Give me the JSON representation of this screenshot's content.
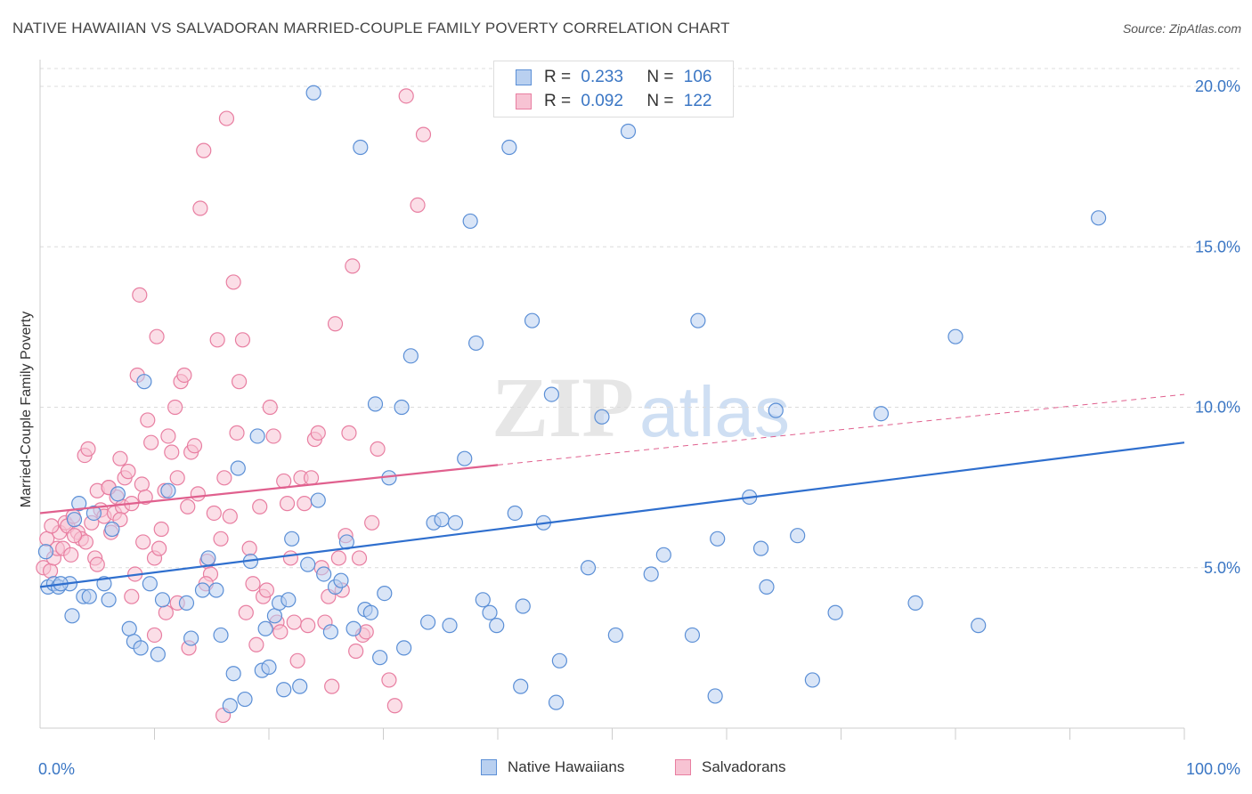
{
  "header": {
    "title": "NATIVE HAWAIIAN VS SALVADORAN MARRIED-COUPLE FAMILY POVERTY CORRELATION CHART",
    "source": "Source: ZipAtlas.com"
  },
  "watermark": {
    "zip": "ZIP",
    "atlas": "atlas"
  },
  "legend": {
    "rows": [
      {
        "r_label": "R =",
        "r_value": "0.233",
        "n_label": "N =",
        "n_value": "106"
      },
      {
        "r_label": "R =",
        "r_value": "0.092",
        "n_label": "N =",
        "n_value": "122"
      }
    ]
  },
  "bottom_legend": {
    "series1": "Native Hawaiians",
    "series2": "Salvadorans"
  },
  "colors": {
    "blue": "#5b8fd6",
    "blue_fill": "#b9d0f0",
    "blue_line": "#2f6fce",
    "pink": "#e87ea1",
    "pink_fill": "#f7c3d3",
    "pink_line": "#e0608e",
    "tick_text": "#3a76c4"
  },
  "chart_data": {
    "type": "scatter",
    "title": "NATIVE HAWAIIAN VS SALVADORAN MARRIED-COUPLE FAMILY POVERTY CORRELATION CHART",
    "xlabel": "",
    "ylabel": "Married-Couple Family Poverty",
    "xlim": [
      0,
      100
    ],
    "ylim": [
      0,
      20.5
    ],
    "x_tick_labels": [
      "0.0%",
      "100.0%"
    ],
    "y_ticks": [
      5,
      10,
      15,
      20
    ],
    "y_tick_labels": [
      "5.0%",
      "10.0%",
      "15.0%",
      "20.0%"
    ],
    "grid": "horizontal dashed",
    "series": [
      {
        "name": "Native Hawaiians",
        "color": "#5b8fd6",
        "trend": {
          "x": [
            0,
            100
          ],
          "y": [
            4.4,
            8.9
          ]
        },
        "points": [
          [
            0.5,
            5.5
          ],
          [
            0.7,
            4.4
          ],
          [
            1.2,
            4.5
          ],
          [
            1.6,
            4.4
          ],
          [
            2.6,
            4.5
          ],
          [
            2.8,
            3.5
          ],
          [
            3.4,
            7.0
          ],
          [
            3.8,
            4.1
          ],
          [
            4.3,
            4.1
          ],
          [
            4.7,
            6.7
          ],
          [
            5.6,
            4.5
          ],
          [
            6.0,
            4.0
          ],
          [
            6.3,
            6.2
          ],
          [
            6.8,
            7.3
          ],
          [
            7.8,
            3.1
          ],
          [
            8.2,
            2.7
          ],
          [
            8.8,
            2.5
          ],
          [
            9.1,
            10.8
          ],
          [
            9.6,
            4.5
          ],
          [
            10.3,
            2.3
          ],
          [
            10.7,
            4.0
          ],
          [
            11.2,
            7.4
          ],
          [
            12.8,
            3.9
          ],
          [
            13.2,
            2.8
          ],
          [
            14.2,
            4.3
          ],
          [
            14.7,
            5.3
          ],
          [
            15.4,
            4.3
          ],
          [
            16.6,
            0.7
          ],
          [
            16.9,
            1.7
          ],
          [
            17.3,
            8.1
          ],
          [
            17.9,
            0.9
          ],
          [
            18.4,
            5.2
          ],
          [
            19.0,
            9.1
          ],
          [
            19.4,
            1.8
          ],
          [
            19.7,
            3.1
          ],
          [
            20.0,
            1.9
          ],
          [
            20.5,
            3.5
          ],
          [
            20.9,
            3.9
          ],
          [
            21.3,
            1.2
          ],
          [
            21.7,
            4.0
          ],
          [
            22.0,
            5.9
          ],
          [
            22.7,
            1.3
          ],
          [
            23.4,
            5.1
          ],
          [
            23.9,
            19.8
          ],
          [
            24.3,
            7.1
          ],
          [
            24.8,
            4.8
          ],
          [
            25.4,
            3.0
          ],
          [
            25.8,
            4.4
          ],
          [
            26.3,
            4.6
          ],
          [
            26.8,
            5.8
          ],
          [
            27.4,
            3.1
          ],
          [
            28.0,
            18.1
          ],
          [
            28.4,
            3.7
          ],
          [
            28.9,
            3.6
          ],
          [
            29.3,
            10.1
          ],
          [
            29.7,
            2.2
          ],
          [
            30.1,
            4.2
          ],
          [
            30.5,
            7.8
          ],
          [
            31.6,
            10.0
          ],
          [
            31.8,
            2.5
          ],
          [
            32.4,
            11.6
          ],
          [
            33.9,
            3.3
          ],
          [
            34.4,
            6.4
          ],
          [
            35.1,
            6.5
          ],
          [
            35.8,
            3.2
          ],
          [
            36.3,
            6.4
          ],
          [
            37.1,
            8.4
          ],
          [
            37.6,
            15.8
          ],
          [
            38.1,
            12.0
          ],
          [
            38.7,
            4.0
          ],
          [
            39.3,
            3.6
          ],
          [
            39.9,
            3.2
          ],
          [
            41.0,
            18.1
          ],
          [
            41.5,
            6.7
          ],
          [
            42.0,
            1.3
          ],
          [
            42.2,
            3.8
          ],
          [
            43.0,
            12.7
          ],
          [
            44.0,
            6.4
          ],
          [
            44.7,
            10.4
          ],
          [
            45.1,
            0.8
          ],
          [
            45.4,
            2.1
          ],
          [
            47.9,
            5.0
          ],
          [
            49.1,
            9.7
          ],
          [
            50.3,
            2.9
          ],
          [
            51.4,
            18.6
          ],
          [
            53.4,
            4.8
          ],
          [
            54.5,
            5.4
          ],
          [
            57.0,
            2.9
          ],
          [
            57.5,
            12.7
          ],
          [
            59.0,
            1.0
          ],
          [
            59.2,
            5.9
          ],
          [
            62.0,
            7.2
          ],
          [
            63.0,
            5.6
          ],
          [
            63.5,
            4.4
          ],
          [
            64.3,
            9.9
          ],
          [
            66.2,
            6.0
          ],
          [
            67.5,
            1.5
          ],
          [
            69.5,
            3.6
          ],
          [
            73.5,
            9.8
          ],
          [
            76.5,
            3.9
          ],
          [
            80.0,
            12.2
          ],
          [
            82.0,
            3.2
          ],
          [
            92.5,
            15.9
          ],
          [
            1.8,
            4.5
          ],
          [
            3.0,
            6.5
          ],
          [
            15.8,
            2.9
          ]
        ]
      },
      {
        "name": "Salvadorans",
        "color": "#e87ea1",
        "trend": {
          "x": [
            0,
            40
          ],
          "y": [
            6.7,
            8.2
          ],
          "dashed_to": {
            "x": 100,
            "y": 10.4
          }
        },
        "points": [
          [
            0.3,
            5.0
          ],
          [
            0.6,
            5.9
          ],
          [
            0.9,
            4.9
          ],
          [
            1.2,
            5.3
          ],
          [
            1.5,
            5.6
          ],
          [
            1.7,
            6.1
          ],
          [
            2.0,
            5.6
          ],
          [
            2.2,
            6.4
          ],
          [
            2.4,
            6.3
          ],
          [
            2.7,
            5.4
          ],
          [
            2.9,
            6.6
          ],
          [
            3.3,
            6.1
          ],
          [
            3.6,
            5.9
          ],
          [
            3.9,
            8.5
          ],
          [
            4.2,
            8.7
          ],
          [
            4.5,
            6.4
          ],
          [
            4.8,
            5.3
          ],
          [
            5.0,
            7.4
          ],
          [
            5.3,
            6.8
          ],
          [
            5.6,
            6.6
          ],
          [
            6.0,
            7.5
          ],
          [
            6.2,
            6.1
          ],
          [
            6.5,
            6.7
          ],
          [
            6.7,
            7.2
          ],
          [
            7.0,
            8.4
          ],
          [
            7.2,
            6.9
          ],
          [
            7.4,
            7.8
          ],
          [
            7.7,
            8.0
          ],
          [
            8.0,
            7.0
          ],
          [
            8.3,
            4.8
          ],
          [
            8.5,
            11.0
          ],
          [
            8.7,
            13.5
          ],
          [
            8.9,
            7.6
          ],
          [
            9.2,
            7.2
          ],
          [
            9.4,
            9.6
          ],
          [
            9.7,
            8.9
          ],
          [
            10.0,
            5.3
          ],
          [
            10.2,
            12.2
          ],
          [
            10.4,
            5.6
          ],
          [
            10.6,
            6.2
          ],
          [
            10.9,
            7.4
          ],
          [
            11.2,
            9.1
          ],
          [
            11.5,
            8.6
          ],
          [
            11.8,
            10.0
          ],
          [
            12.0,
            7.8
          ],
          [
            12.3,
            10.8
          ],
          [
            12.6,
            11.0
          ],
          [
            12.9,
            6.9
          ],
          [
            13.2,
            8.6
          ],
          [
            13.5,
            8.8
          ],
          [
            13.8,
            7.3
          ],
          [
            14.0,
            16.2
          ],
          [
            14.3,
            18.0
          ],
          [
            14.6,
            5.2
          ],
          [
            14.9,
            4.8
          ],
          [
            15.2,
            6.7
          ],
          [
            15.5,
            12.1
          ],
          [
            15.8,
            5.9
          ],
          [
            16.1,
            7.8
          ],
          [
            16.3,
            19.0
          ],
          [
            16.6,
            6.6
          ],
          [
            16.9,
            13.9
          ],
          [
            17.2,
            9.2
          ],
          [
            17.4,
            10.8
          ],
          [
            17.7,
            12.1
          ],
          [
            18.0,
            3.6
          ],
          [
            18.3,
            5.6
          ],
          [
            18.6,
            4.5
          ],
          [
            18.9,
            2.6
          ],
          [
            19.2,
            6.9
          ],
          [
            19.5,
            4.1
          ],
          [
            19.8,
            4.3
          ],
          [
            20.1,
            10.0
          ],
          [
            20.4,
            9.1
          ],
          [
            20.7,
            3.3
          ],
          [
            21.0,
            3.0
          ],
          [
            21.3,
            7.7
          ],
          [
            21.6,
            7.0
          ],
          [
            21.9,
            5.3
          ],
          [
            22.2,
            3.3
          ],
          [
            22.5,
            2.1
          ],
          [
            22.8,
            7.8
          ],
          [
            23.1,
            7.0
          ],
          [
            23.4,
            3.2
          ],
          [
            23.7,
            7.8
          ],
          [
            24.0,
            9.0
          ],
          [
            24.3,
            9.2
          ],
          [
            24.6,
            5.0
          ],
          [
            24.9,
            3.3
          ],
          [
            25.2,
            4.1
          ],
          [
            25.5,
            1.3
          ],
          [
            25.8,
            12.6
          ],
          [
            26.1,
            5.3
          ],
          [
            26.4,
            4.3
          ],
          [
            26.7,
            6.0
          ],
          [
            27.0,
            9.2
          ],
          [
            27.3,
            14.4
          ],
          [
            27.6,
            2.4
          ],
          [
            27.9,
            5.3
          ],
          [
            28.2,
            2.9
          ],
          [
            28.5,
            3.0
          ],
          [
            29.0,
            6.4
          ],
          [
            29.5,
            8.7
          ],
          [
            30.5,
            1.5
          ],
          [
            31.0,
            0.7
          ],
          [
            32.0,
            19.7
          ],
          [
            33.0,
            16.3
          ],
          [
            33.5,
            18.5
          ],
          [
            16.0,
            0.4
          ],
          [
            14.5,
            4.5
          ],
          [
            13.0,
            2.5
          ],
          [
            12.0,
            3.9
          ],
          [
            11.0,
            3.6
          ],
          [
            10.0,
            2.9
          ],
          [
            9.0,
            5.8
          ],
          [
            8.0,
            4.1
          ],
          [
            7.0,
            6.5
          ],
          [
            6.0,
            7.5
          ],
          [
            5.0,
            5.1
          ],
          [
            4.0,
            5.8
          ],
          [
            3.0,
            6.0
          ],
          [
            1.0,
            6.3
          ]
        ]
      }
    ]
  }
}
